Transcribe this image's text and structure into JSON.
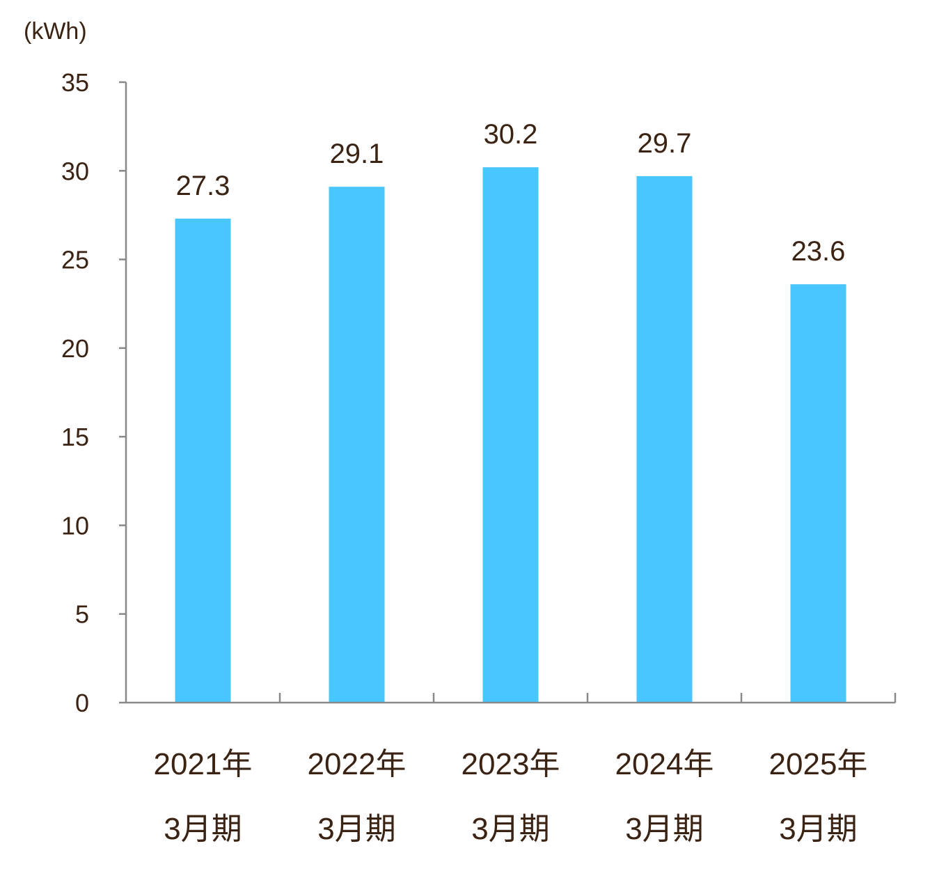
{
  "chart_data": {
    "type": "bar",
    "unit_label": "(kWh)",
    "categories": [
      [
        "2021年",
        "3月期"
      ],
      [
        "2022年",
        "3月期"
      ],
      [
        "2023年",
        "3月期"
      ],
      [
        "2024年",
        "3月期"
      ],
      [
        "2025年",
        "3月期"
      ]
    ],
    "values": [
      27.3,
      29.1,
      30.2,
      29.7,
      23.6
    ],
    "data_labels": [
      "27.3",
      "29.1",
      "30.2",
      "29.7",
      "23.6"
    ],
    "ylim": [
      0,
      35
    ],
    "yticks": [
      0,
      5,
      10,
      15,
      20,
      25,
      30,
      35
    ],
    "grid": false,
    "legend": "none",
    "colors": {
      "bar": "#48c6fe",
      "axis": "#898989",
      "text": "#3b2314"
    }
  }
}
